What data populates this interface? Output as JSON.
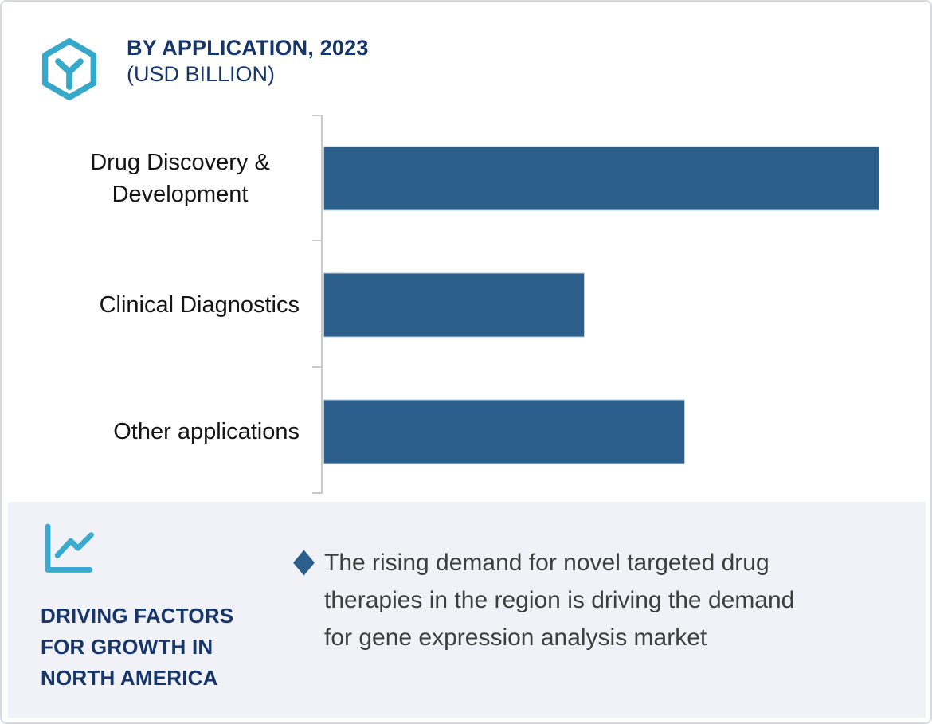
{
  "header": {
    "title": "BY APPLICATION, 2023",
    "subtitle": "(USD BILLION)",
    "logo_icon": "hexagon-y-cube",
    "accent_teal": "#36a9cb",
    "navy": "#16356b"
  },
  "chart_data": {
    "type": "bar",
    "orientation": "horizontal",
    "title": "BY APPLICATION, 2023",
    "units": "USD BILLION",
    "categories": [
      "Drug Discovery & Development",
      "Clinical Diagnostics",
      "Other applications"
    ],
    "values_relative_to_max": [
      1.0,
      0.47,
      0.65
    ],
    "value_labels_shown": false,
    "axis_tick_labels_shown": false,
    "grid": false,
    "legend": "none",
    "bar_color": "#2d5f8c",
    "axis_color": "#c9c9c9"
  },
  "footer": {
    "icon": "line-chart",
    "panel_bg": "#f0f2f7",
    "heading_lines": [
      "DRIVING FACTORS",
      "FOR GROWTH IN",
      "NORTH AMERICA"
    ],
    "bullet_marker": "diamond",
    "bullet_marker_color": "#2d5f8c",
    "bullet_lines": [
      "The rising demand for novel targeted drug",
      "therapies in the region is driving the demand",
      "for gene expression analysis market"
    ]
  }
}
